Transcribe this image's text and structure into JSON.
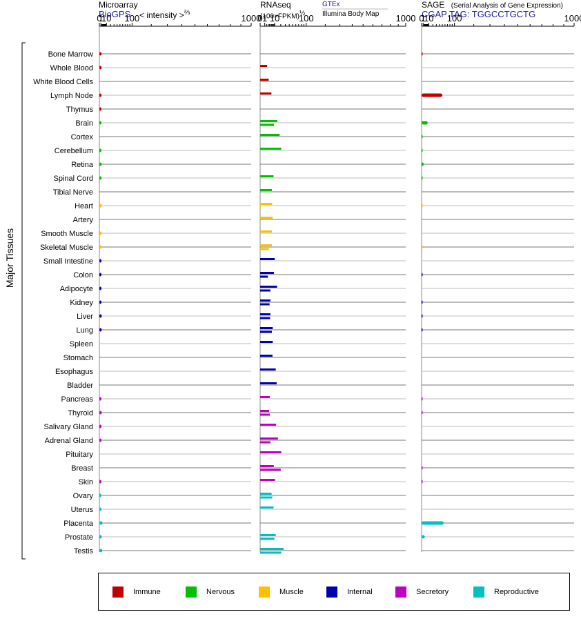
{
  "headers": {
    "microarray": {
      "title": "Microarray",
      "source": "BioGPS",
      "unit": "< intensity >",
      "unit_exp": "⅔"
    },
    "rnaseq": {
      "title": "RNAseq",
      "unit": "(100×FPKM)",
      "unit_exp": "½",
      "source1": "GTEx",
      "source2": "Illumina Body Map"
    },
    "sage": {
      "title": "SAGE",
      "subtitle": "(Serial Analysis of Gene Expression)",
      "source": "CGAP",
      "tag": "TAG: TGGCCTGCTG"
    }
  },
  "y_group_label": "Major Tissues",
  "legend": [
    {
      "label": "Immune",
      "color": "#c00000"
    },
    {
      "label": "Nervous",
      "color": "#00c000"
    },
    {
      "label": "Muscle",
      "color": "#ffc000"
    },
    {
      "label": "Internal",
      "color": "#0000b0"
    },
    {
      "label": "Secretory",
      "color": "#c000c0"
    },
    {
      "label": "Reproductive",
      "color": "#00c0c0"
    }
  ],
  "chart_data": [
    {
      "type": "bar",
      "title": "Microarray",
      "x_scale": "power 2/3",
      "x_ticks": [
        "0",
        "1",
        "10",
        "100",
        "1000"
      ],
      "xlim": [
        0,
        1000
      ],
      "categories": [
        "Bone Marrow",
        "Whole Blood",
        "White Blood Cells",
        "Lymph Node",
        "Thymus",
        "Brain",
        "Cortex",
        "Cerebellum",
        "Retina",
        "Spinal Cord",
        "Tibial Nerve",
        "Heart",
        "Artery",
        "Smooth Muscle",
        "Skeletal Muscle",
        "Small Intestine",
        "Colon",
        "Adipocyte",
        "Kidney",
        "Liver",
        "Lung",
        "Spleen",
        "Stomach",
        "Esophagus",
        "Bladder",
        "Pancreas",
        "Thyroid",
        "Salivary Gland",
        "Adrenal Gland",
        "Pituitary",
        "Breast",
        "Skin",
        "Ovary",
        "Uterus",
        "Placenta",
        "Prostate",
        "Testis"
      ],
      "groups": [
        "Immune",
        "Immune",
        "Immune",
        "Immune",
        "Immune",
        "Nervous",
        "Nervous",
        "Nervous",
        "Nervous",
        "Nervous",
        "Nervous",
        "Muscle",
        "Muscle",
        "Muscle",
        "Muscle",
        "Internal",
        "Internal",
        "Internal",
        "Internal",
        "Internal",
        "Internal",
        "Internal",
        "Internal",
        "Internal",
        "Internal",
        "Secretory",
        "Secretory",
        "Secretory",
        "Secretory",
        "Secretory",
        "Secretory",
        "Secretory",
        "Reproductive",
        "Reproductive",
        "Reproductive",
        "Reproductive",
        "Reproductive"
      ],
      "values": [
        1.7,
        1.8,
        null,
        1.6,
        1.5,
        1.6,
        null,
        1.5,
        1.8,
        1.7,
        null,
        2.1,
        null,
        1.9,
        1.9,
        1.6,
        1.6,
        1.6,
        1.6,
        1.9,
        1.9,
        null,
        null,
        null,
        null,
        1.5,
        1.9,
        1.5,
        1.6,
        null,
        null,
        1.5,
        1.3,
        1.6,
        3.0,
        1.9,
        2.7
      ]
    },
    {
      "type": "bar",
      "title": "RNAseq",
      "x_scale": "power 1/2",
      "x_ticks": [
        "0",
        "1",
        "10",
        "100",
        "1000"
      ],
      "xlim": [
        0,
        1000
      ],
      "categories": [
        "Bone Marrow",
        "Whole Blood",
        "White Blood Cells",
        "Lymph Node",
        "Thymus",
        "Brain",
        "Cortex",
        "Cerebellum",
        "Retina",
        "Spinal Cord",
        "Tibial Nerve",
        "Heart",
        "Artery",
        "Smooth Muscle",
        "Skeletal Muscle",
        "Small Intestine",
        "Colon",
        "Adipocyte",
        "Kidney",
        "Liver",
        "Lung",
        "Spleen",
        "Stomach",
        "Esophagus",
        "Bladder",
        "Pancreas",
        "Thyroid",
        "Salivary Gland",
        "Adrenal Gland",
        "Pituitary",
        "Breast",
        "Skin",
        "Ovary",
        "Uterus",
        "Placenta",
        "Prostate",
        "Testis"
      ],
      "series": [
        {
          "name": "GTEx",
          "values": [
            null,
            2.3,
            3.5,
            6.0,
            null,
            14.0,
            18.0,
            21.0,
            null,
            8.5,
            6.5,
            6.8,
            7.4,
            6.5,
            6.6,
            10.0,
            9.0,
            13.5,
            5.0,
            5.0,
            7.5,
            7.5,
            7.2,
            11.5,
            12.8,
            4.5,
            3.8,
            12.0,
            15.0,
            21.0,
            8.8,
            10.5,
            6.2,
            8.5,
            null,
            11.5,
            26.0
          ]
        },
        {
          "name": "Illumina Body Map",
          "values": [
            null,
            null,
            null,
            null,
            null,
            9.0,
            null,
            null,
            null,
            null,
            null,
            0.01,
            null,
            null,
            3.7,
            null,
            2.8,
            5.0,
            4.2,
            4.7,
            6.5,
            null,
            null,
            null,
            null,
            null,
            4.5,
            null,
            5.0,
            null,
            20.0,
            null,
            7.0,
            null,
            null,
            9.5,
            21.0
          ]
        }
      ]
    },
    {
      "type": "bar",
      "title": "SAGE",
      "x_scale": "power 2/3",
      "x_ticks": [
        "0",
        "1",
        "10",
        "100",
        "1000"
      ],
      "xlim": [
        0,
        1000
      ],
      "categories": [
        "Bone Marrow",
        "Whole Blood",
        "White Blood Cells",
        "Lymph Node",
        "Thymus",
        "Brain",
        "Cortex",
        "Cerebellum",
        "Retina",
        "Spinal Cord",
        "Tibial Nerve",
        "Heart",
        "Artery",
        "Smooth Muscle",
        "Skeletal Muscle",
        "Small Intestine",
        "Colon",
        "Adipocyte",
        "Kidney",
        "Liver",
        "Lung",
        "Spleen",
        "Stomach",
        "Esophagus",
        "Bladder",
        "Pancreas",
        "Thyroid",
        "Salivary Gland",
        "Adrenal Gland",
        "Pituitary",
        "Breast",
        "Skin",
        "Ovary",
        "Uterus",
        "Placenta",
        "Prostate",
        "Testis"
      ],
      "values": [
        0.01,
        null,
        null,
        50,
        null,
        8,
        0.01,
        0.01,
        1.5,
        0.01,
        null,
        0.005,
        null,
        null,
        0.005,
        null,
        0.01,
        null,
        0.01,
        0.01,
        0.01,
        null,
        null,
        null,
        null,
        0.01,
        0.01,
        null,
        null,
        null,
        0.01,
        0.5,
        null,
        null,
        55,
        3,
        null
      ]
    }
  ]
}
